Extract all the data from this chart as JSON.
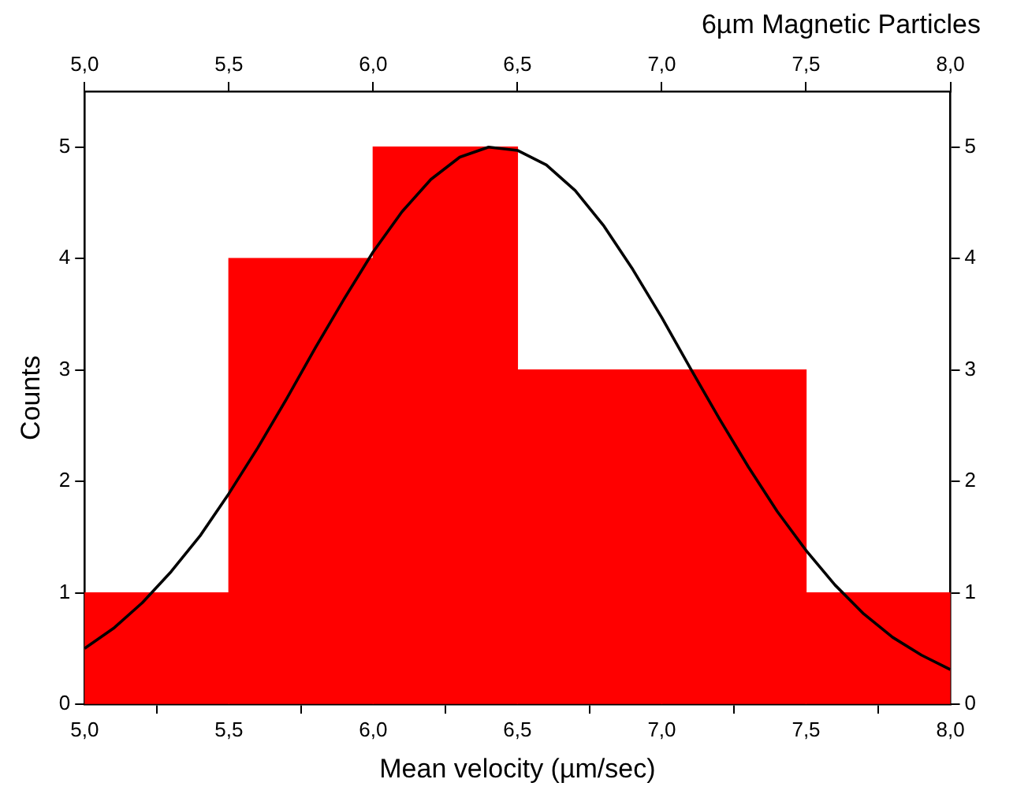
{
  "chart_data": {
    "type": "histogram",
    "title": "6µm Magnetic Particles",
    "xlabel": "Mean velocity (µm/sec)",
    "ylabel": "Counts",
    "bins": [
      5,
      5.5,
      6,
      6.5,
      7,
      7.5,
      8
    ],
    "values": [
      1,
      4,
      5,
      3,
      3,
      1
    ],
    "color": "#ff0000",
    "series": [
      {
        "type": "line",
        "color": "#000000",
        "marker": "none",
        "x": [
          5,
          5.1,
          5.2,
          5.3,
          5.4,
          5.5,
          5.6,
          5.7,
          5.8,
          5.9,
          6,
          6.1,
          6.2,
          6.3,
          6.4,
          6.5,
          6.6,
          6.7,
          6.8,
          6.9,
          7,
          7.1,
          7.2,
          7.3,
          7.4,
          7.5,
          7.6,
          7.7,
          7.8,
          7.9,
          8
        ],
        "values": [
          0.5,
          0.68,
          0.91,
          1.19,
          1.51,
          1.89,
          2.3,
          2.74,
          3.2,
          3.64,
          4.06,
          4.42,
          4.71,
          4.91,
          5,
          4.97,
          4.84,
          4.61,
          4.29,
          3.9,
          3.47,
          3.01,
          2.56,
          2.13,
          1.73,
          1.38,
          1.07,
          0.81,
          0.6,
          0.44,
          0.31
        ]
      }
    ],
    "xlim": [
      5,
      8
    ],
    "xticks": [
      {
        "value": 5,
        "label": "5,0"
      },
      {
        "value": 5.5,
        "label": "5,5"
      },
      {
        "value": 6,
        "label": "6,0"
      },
      {
        "value": 6.5,
        "label": "6,5"
      },
      {
        "value": 7,
        "label": "7,0"
      },
      {
        "value": 7.5,
        "label": "7,5"
      },
      {
        "value": 8,
        "label": "8,0"
      }
    ],
    "x2lim": [
      5,
      8
    ],
    "x2ticks": [
      {
        "value": 5,
        "label": "5,0"
      },
      {
        "value": 5.5,
        "label": "5,5"
      },
      {
        "value": 6,
        "label": "6,0"
      },
      {
        "value": 6.5,
        "label": "6,5"
      },
      {
        "value": 7,
        "label": "7,0"
      },
      {
        "value": 7.5,
        "label": "7,5"
      },
      {
        "value": 8,
        "label": "8,0"
      }
    ],
    "ylim": [
      0,
      5.5
    ],
    "yticks": [
      0,
      1,
      2,
      3,
      4,
      5
    ],
    "y2lim": [
      0,
      5.5
    ],
    "y2ticks": [
      0,
      1,
      2,
      3,
      4,
      5
    ],
    "grid": false,
    "legend": false
  }
}
